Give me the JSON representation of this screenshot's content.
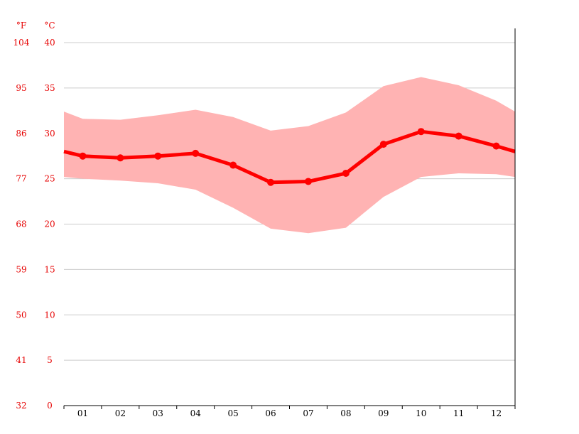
{
  "chart_data": {
    "type": "area",
    "title": "",
    "xlabel": "",
    "ylabel": "",
    "categories": [
      "01",
      "02",
      "03",
      "04",
      "05",
      "06",
      "07",
      "08",
      "09",
      "10",
      "11",
      "12"
    ],
    "y_unit_left": "°F",
    "y_unit_right": "°C",
    "fahrenheit_ticks": [
      "32",
      "41",
      "50",
      "59",
      "68",
      "77",
      "86",
      "95",
      "104"
    ],
    "celsius_ticks": [
      "0",
      "5",
      "10",
      "15",
      "20",
      "25",
      "30",
      "35",
      "40"
    ],
    "ylim": [
      0,
      40
    ],
    "grid": true,
    "legend": "none",
    "series": [
      {
        "values": [
          27.5,
          27.3,
          27.5,
          27.8,
          26.5,
          24.6,
          24.7,
          25.6,
          28.8,
          30.2,
          29.7,
          28.6
        ],
        "start_value": 28.0,
        "end_value": 28.0,
        "color": "#ff0000"
      },
      {
        "range_high": [
          31.6,
          31.5,
          32.0,
          32.6,
          31.8,
          30.3,
          30.8,
          32.3,
          35.2,
          36.2,
          35.3,
          33.6
        ],
        "range_low": [
          25.0,
          24.8,
          24.5,
          23.8,
          21.8,
          19.5,
          19.0,
          19.6,
          23.0,
          25.2,
          25.6,
          25.5
        ],
        "start_high": 32.4,
        "start_low": 25.2,
        "end_high": 32.4,
        "end_low": 25.2,
        "color": "#ffb3b3"
      }
    ]
  },
  "colors": {
    "axis_text": "#e60000",
    "grid": "#cccccc",
    "axis": "#000000",
    "mean_line": "#ff0000",
    "range_band": "#ffb3b3"
  }
}
